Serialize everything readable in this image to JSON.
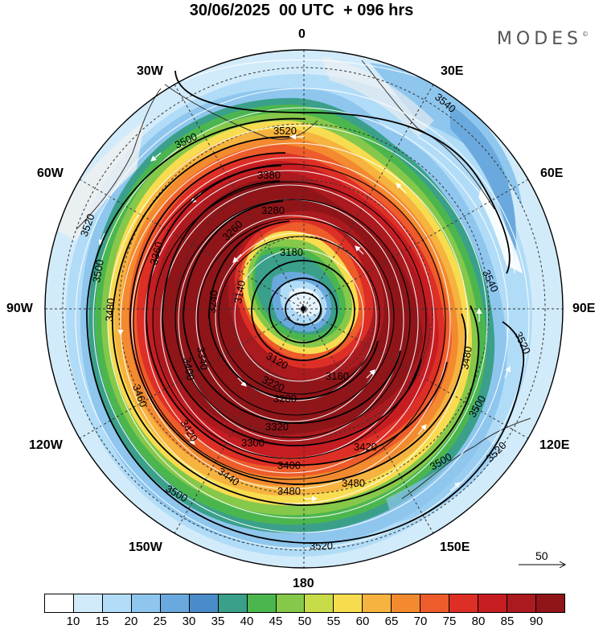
{
  "title": "30/06/2025  00 UTC  + 096 hrs",
  "brand": {
    "text": "MODES",
    "mark": "©"
  },
  "map": {
    "projection": "polar-stereographic",
    "center": "south-pole",
    "longitude_labels": {
      "top": "0",
      "top_right": "30E",
      "upper_right": "60E",
      "right": "90E",
      "lower_right": "120E",
      "bottom_right": "150E",
      "bottom": "180",
      "bottom_left": "150W",
      "lower_left": "120W",
      "left": "90W",
      "upper_left": "60W",
      "top_left": "30W"
    },
    "contour_labels": [
      {
        "text": "3540"
      },
      {
        "text": "3520"
      },
      {
        "text": "3540"
      },
      {
        "text": "3520"
      },
      {
        "text": "3520"
      },
      {
        "text": "3500"
      },
      {
        "text": "3480"
      },
      {
        "text": "3500"
      },
      {
        "text": "3520"
      },
      {
        "text": "3520"
      },
      {
        "text": "3500"
      },
      {
        "text": "3480"
      },
      {
        "text": "3460"
      },
      {
        "text": "3440"
      },
      {
        "text": "3420"
      },
      {
        "text": "3400"
      },
      {
        "text": "3380"
      },
      {
        "text": "3360"
      },
      {
        "text": "3340"
      },
      {
        "text": "3320"
      },
      {
        "text": "3300"
      },
      {
        "text": "3280"
      },
      {
        "text": "3260"
      },
      {
        "text": "3240"
      },
      {
        "text": "3220"
      },
      {
        "text": "3200"
      },
      {
        "text": "3180"
      },
      {
        "text": "3160"
      },
      {
        "text": "3140"
      },
      {
        "text": "3120"
      },
      {
        "text": "3480"
      },
      {
        "text": "3500"
      },
      {
        "text": "3500"
      },
      {
        "text": "3480"
      },
      {
        "text": "3420"
      },
      {
        "text": "3400"
      }
    ],
    "colors": {
      "land_grey": "#f0f0f0",
      "wind_arrows": "#ffffff",
      "contours": "#000000"
    }
  },
  "reference_vector": {
    "label": "50"
  },
  "legend": {
    "colors": [
      "#ffffff",
      "#d2ebfa",
      "#b1dcf7",
      "#8ec6ee",
      "#6aa9dd",
      "#4a8cc9",
      "#3aa08a",
      "#4cb64e",
      "#86c84a",
      "#c8dc4a",
      "#f7dc50",
      "#f6b33f",
      "#f38a2f",
      "#ed5c2a",
      "#dd2f26",
      "#c51d22",
      "#ab1a1f",
      "#8f1519"
    ],
    "labels": [
      "10",
      "15",
      "20",
      "25",
      "30",
      "35",
      "40",
      "45",
      "50",
      "55",
      "60",
      "65",
      "70",
      "75",
      "80",
      "85",
      "90"
    ]
  }
}
